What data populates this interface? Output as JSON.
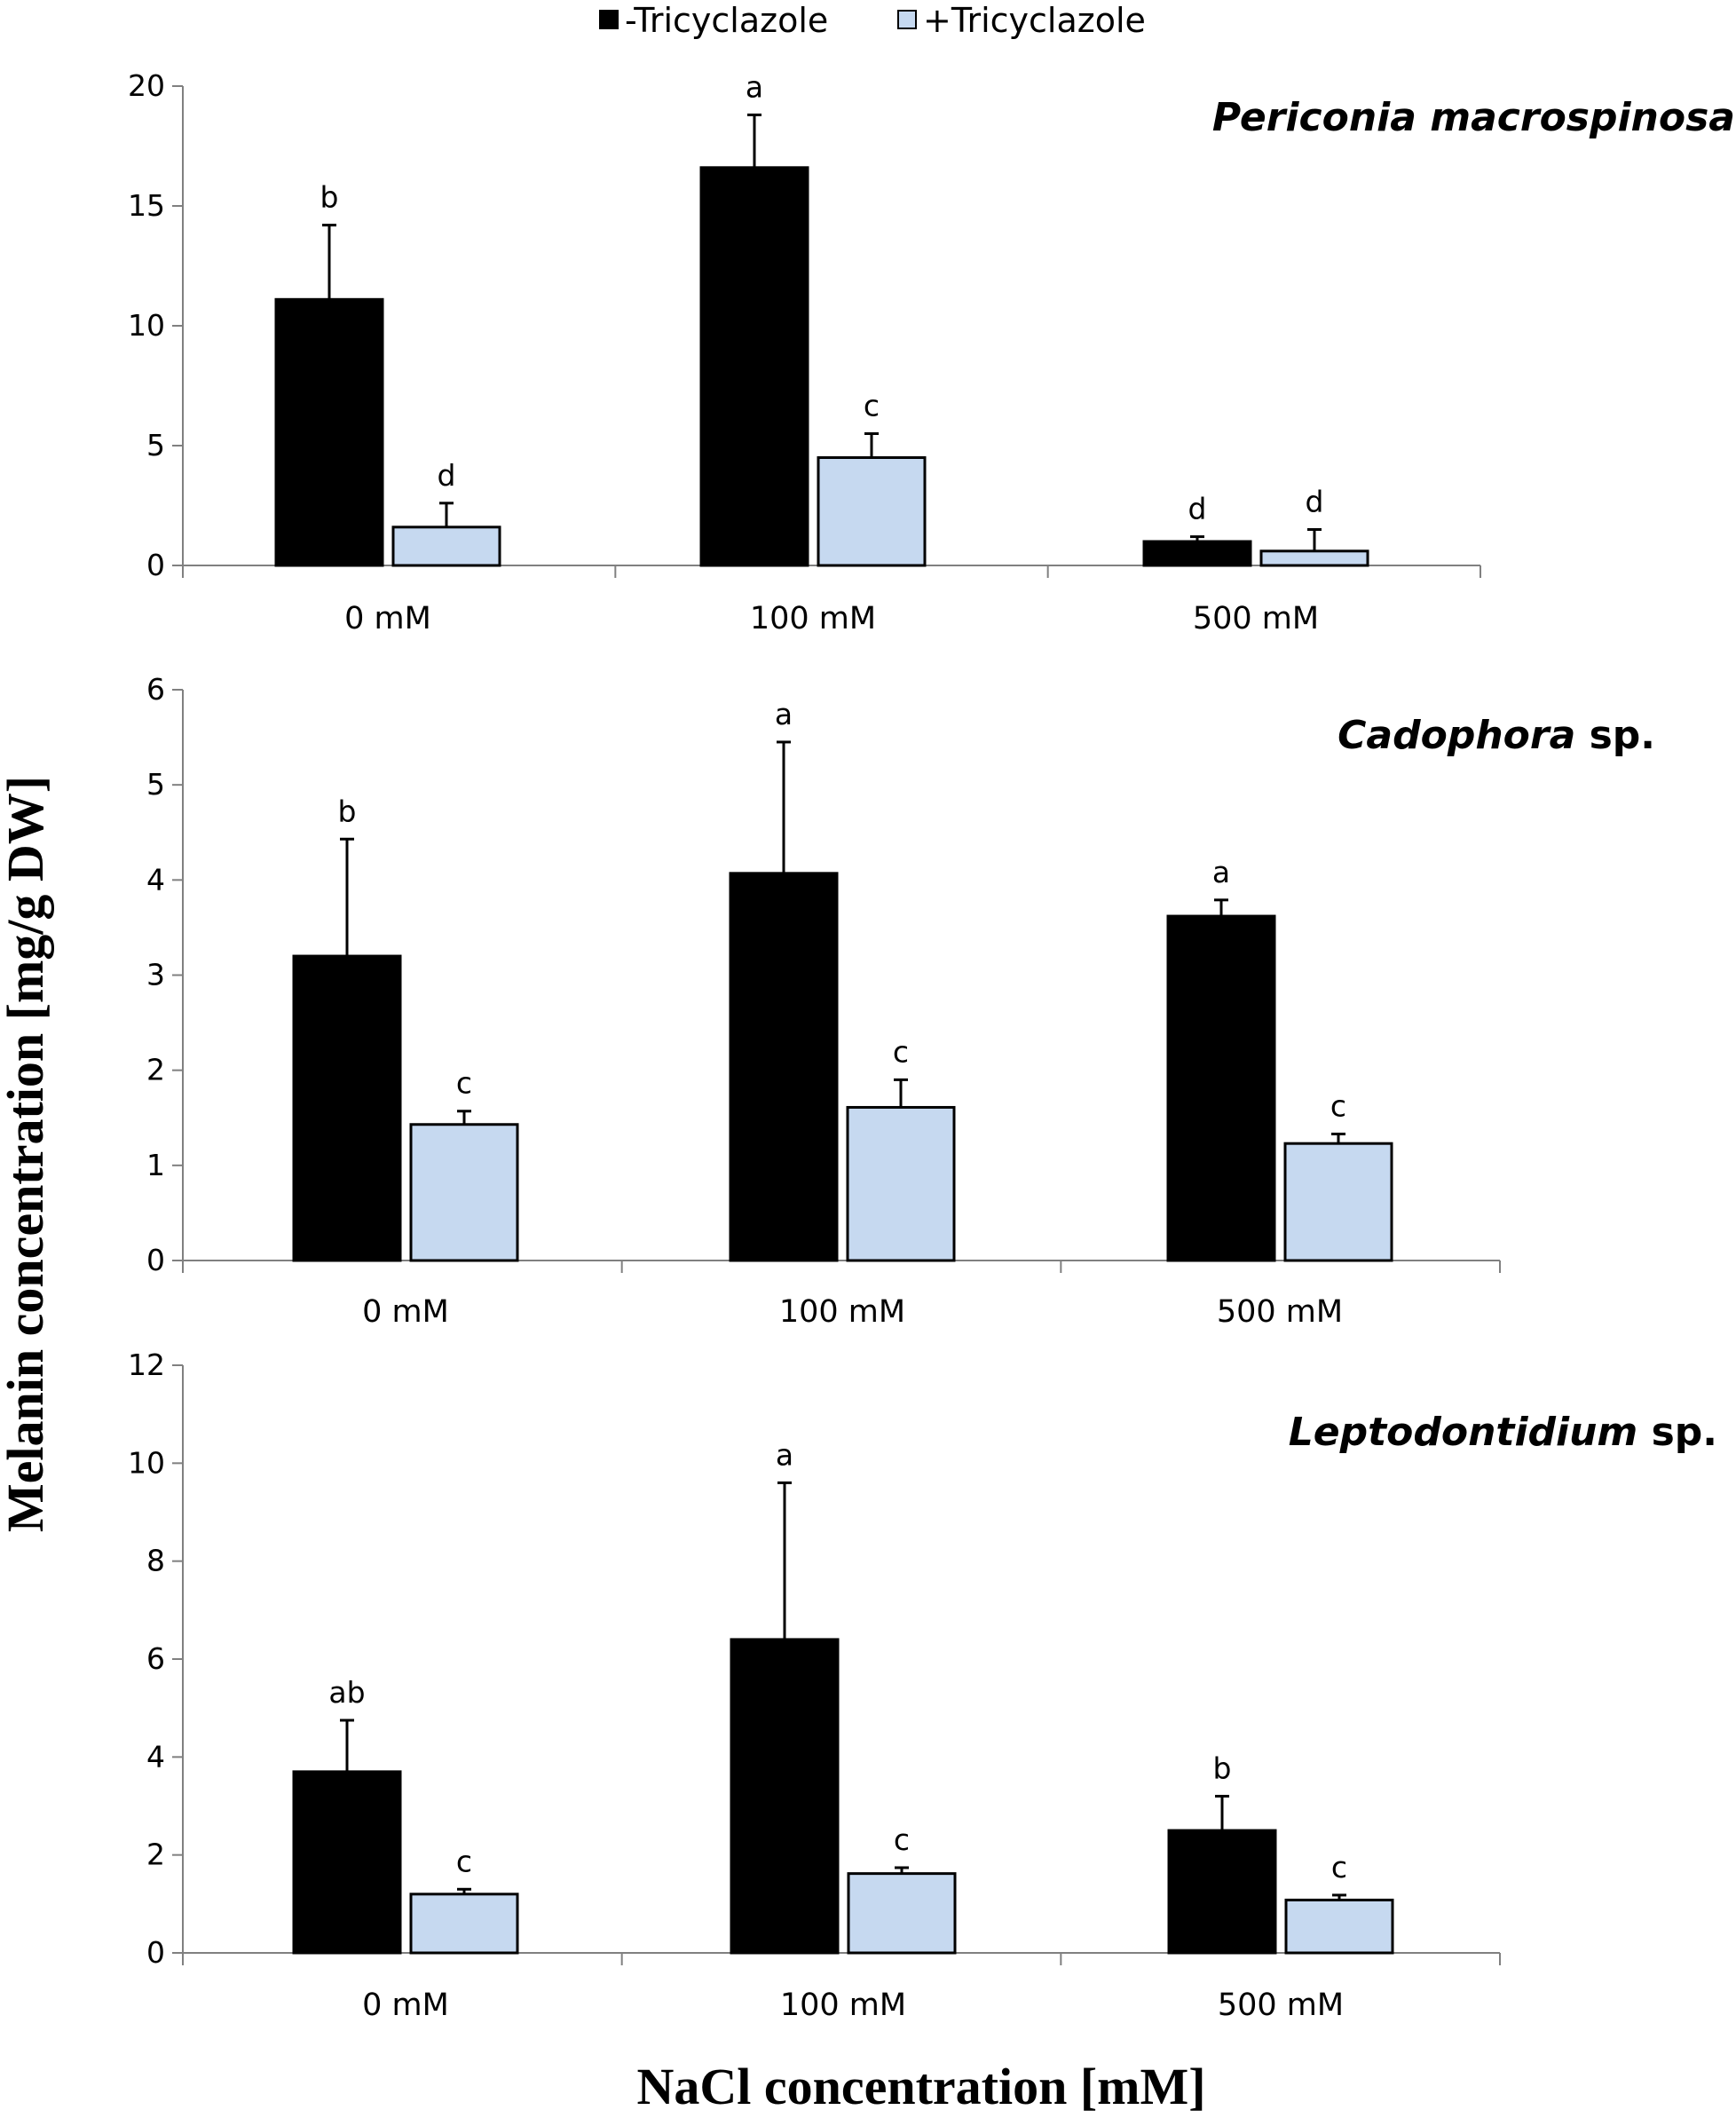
{
  "legend": {
    "items": [
      {
        "label": "-Tricyclazole",
        "color": "#000000"
      },
      {
        "label": "+Tricyclazole",
        "color": "#c6d9f0"
      }
    ]
  },
  "y_axis_title": "Melanin concentration [mg/g DW]",
  "x_axis_title": "NaCl concentration [mM]",
  "chart_data": [
    {
      "type": "bar",
      "title_italic": "Periconia macrospinosa",
      "title_suffix": "",
      "categories": [
        "0 mM",
        "100 mM",
        "500 mM"
      ],
      "ylim": [
        0,
        20
      ],
      "yticks": [
        0,
        5,
        10,
        15,
        20
      ],
      "series": [
        {
          "name": "-Tricyclazole",
          "color": "#000000",
          "values": [
            11.1,
            16.6,
            1.0
          ],
          "errors": [
            3.1,
            2.2,
            0.2
          ],
          "letters": [
            "b",
            "a",
            "d"
          ]
        },
        {
          "name": "+Tricyclazole",
          "color": "#c6d9f0",
          "values": [
            1.6,
            4.5,
            0.6
          ],
          "errors": [
            1.0,
            1.0,
            0.9
          ],
          "letters": [
            "d",
            "c",
            "d"
          ]
        }
      ]
    },
    {
      "type": "bar",
      "title_italic": "Cadophora",
      "title_suffix": " sp.",
      "categories": [
        "0 mM",
        "100 mM",
        "500 mM"
      ],
      "ylim": [
        0,
        6
      ],
      "yticks": [
        0,
        1,
        2,
        3,
        4,
        5,
        6
      ],
      "series": [
        {
          "name": "-Tricyclazole",
          "color": "#000000",
          "values": [
            3.2,
            4.07,
            3.62
          ],
          "errors": [
            1.23,
            1.38,
            0.17
          ],
          "letters": [
            "b",
            "a",
            "a"
          ]
        },
        {
          "name": "+Tricyclazole",
          "color": "#c6d9f0",
          "values": [
            1.43,
            1.61,
            1.23
          ],
          "errors": [
            0.14,
            0.29,
            0.1
          ],
          "letters": [
            "c",
            "c",
            "c"
          ]
        }
      ]
    },
    {
      "type": "bar",
      "title_italic": "Leptodontidium",
      "title_suffix": " sp.",
      "categories": [
        "0 mM",
        "100 mM",
        "500 mM"
      ],
      "ylim": [
        0,
        12
      ],
      "yticks": [
        0,
        2,
        4,
        6,
        8,
        10,
        12
      ],
      "series": [
        {
          "name": "-Tricyclazole",
          "color": "#000000",
          "values": [
            3.7,
            6.4,
            2.5
          ],
          "errors": [
            1.05,
            3.2,
            0.7
          ],
          "letters": [
            "ab",
            "a",
            "b"
          ]
        },
        {
          "name": "+Tricyclazole",
          "color": "#c6d9f0",
          "values": [
            1.2,
            1.62,
            1.08
          ],
          "errors": [
            0.1,
            0.12,
            0.1
          ],
          "letters": [
            "c",
            "c",
            "c"
          ]
        }
      ]
    }
  ]
}
